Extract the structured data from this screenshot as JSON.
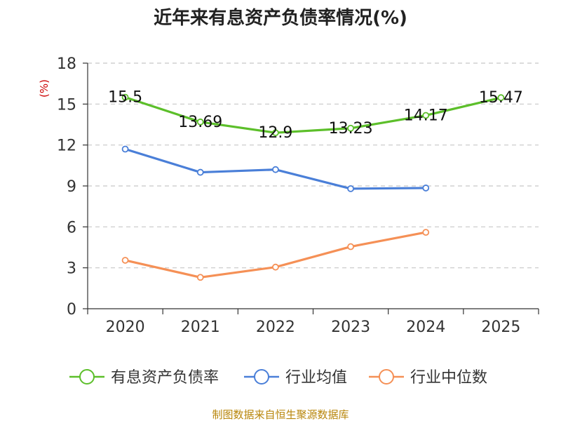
{
  "chart_data": {
    "type": "line",
    "title": "近年来有息资产负债率情况(%)",
    "y_unit": "(%)",
    "categories": [
      "2020",
      "2021",
      "2022",
      "2023",
      "2024",
      "2025"
    ],
    "ylim": [
      0,
      18
    ],
    "yticks": [
      0,
      3,
      6,
      9,
      12,
      15,
      18
    ],
    "grid": true,
    "legend_position": "bottom",
    "series": [
      {
        "name": "有息资产负债率",
        "color": "#5cbf2a",
        "values": [
          15.5,
          13.69,
          12.9,
          13.23,
          14.17,
          15.47
        ],
        "labels": [
          "15.5",
          "13.69",
          "12.9",
          "13.23",
          "14.17",
          "15.47"
        ]
      },
      {
        "name": "行业均值",
        "color": "#4a7fd8",
        "values": [
          11.7,
          10.0,
          10.2,
          8.8,
          8.85,
          null
        ],
        "labels": []
      },
      {
        "name": "行业中位数",
        "color": "#f59056",
        "values": [
          3.55,
          2.3,
          3.05,
          4.55,
          5.6,
          null
        ],
        "labels": []
      }
    ]
  },
  "source_text": "制图数据来自恒生聚源数据库"
}
